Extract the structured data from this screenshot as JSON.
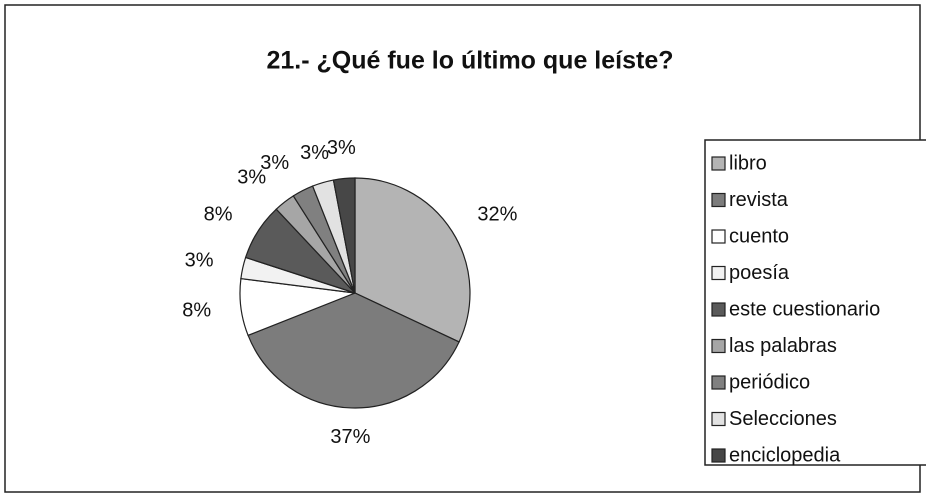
{
  "chart_data": {
    "type": "pie",
    "title": "21.- ¿Qué fue lo último que leíste?",
    "categories": [
      "libro",
      "revista",
      "cuento",
      "poesía",
      "este cuestionario",
      "las palabras",
      "periódico",
      "Selecciones",
      "enciclopedia"
    ],
    "values": [
      32,
      37,
      8,
      3,
      8,
      3,
      3,
      3,
      3
    ],
    "value_labels": [
      "32%",
      "37%",
      "8%",
      "3%",
      "8%",
      "3%",
      "3%",
      "3%",
      "3%"
    ],
    "colors": [
      "#b4b4b4",
      "#7c7c7c",
      "#ffffff",
      "#f2f2f2",
      "#5a5a5a",
      "#a6a6a6",
      "#808080",
      "#e2e2e2",
      "#474747"
    ],
    "legend": "right"
  }
}
